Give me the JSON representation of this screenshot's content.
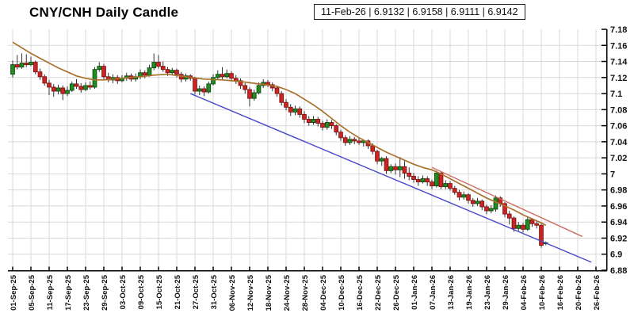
{
  "title": "CNY/CNH Daily Candle",
  "info_box": "11-Feb-26 | 6.9132 | 6.9158 | 6.9111 | 6.9142",
  "chart_data": {
    "type": "candlestick",
    "title": "CNY/CNH Daily Candle",
    "last_bar": {
      "date": "11-Feb-26",
      "open": 6.9132,
      "high": 6.9158,
      "low": 6.9111,
      "close": 6.9142
    },
    "ylim": [
      6.88,
      7.18
    ],
    "grid": true,
    "y_axis_side": "right",
    "y_ticks": [
      "7.18",
      "7.16",
      "7.14",
      "7.12",
      "7.1",
      "7.08",
      "7.06",
      "7.04",
      "7.02",
      "7",
      "6.98",
      "6.96",
      "6.94",
      "6.92",
      "6.9",
      "6.88"
    ],
    "x_label_step": 4,
    "x_extent": 128,
    "x_labels": [
      "01-Sep-25",
      "05-Sep-25",
      "11-Sep-25",
      "17-Sep-25",
      "23-Sep-25",
      "29-Sep-25",
      "03-Oct-25",
      "09-Oct-25",
      "15-Oct-25",
      "21-Oct-25",
      "27-Oct-25",
      "31-Oct-25",
      "06-Nov-25",
      "12-Nov-25",
      "18-Nov-25",
      "24-Nov-25",
      "28-Nov-25",
      "04-Dec-25",
      "10-Dec-25",
      "16-Dec-25",
      "22-Dec-25",
      "26-Dec-25",
      "01-Jan-26",
      "07-Jan-26",
      "13-Jan-26",
      "19-Jan-26",
      "23-Jan-26",
      "29-Jan-26",
      "04-Feb-26",
      "10-Feb-26",
      "16-Feb-26",
      "20-Feb-26",
      "26-Feb-26"
    ],
    "candles": [
      [
        "01-Sep-25",
        7.124,
        7.141,
        7.12,
        7.136
      ],
      [
        "02-Sep-25",
        7.136,
        7.148,
        7.13,
        7.133
      ],
      [
        "03-Sep-25",
        7.133,
        7.15,
        7.131,
        7.138
      ],
      [
        "04-Sep-25",
        7.138,
        7.149,
        7.133,
        7.136
      ],
      [
        "05-Sep-25",
        7.136,
        7.146,
        7.134,
        7.139
      ],
      [
        "08-Sep-25",
        7.139,
        7.141,
        7.124,
        7.127
      ],
      [
        "09-Sep-25",
        7.127,
        7.131,
        7.117,
        7.121
      ],
      [
        "10-Sep-25",
        7.121,
        7.124,
        7.11,
        7.113
      ],
      [
        "11-Sep-25",
        7.113,
        7.117,
        7.098,
        7.108
      ],
      [
        "12-Sep-25",
        7.108,
        7.112,
        7.096,
        7.103
      ],
      [
        "15-Sep-25",
        7.103,
        7.111,
        7.099,
        7.107
      ],
      [
        "16-Sep-25",
        7.107,
        7.11,
        7.092,
        7.1
      ],
      [
        "17-Sep-25",
        7.1,
        7.109,
        7.097,
        7.104
      ],
      [
        "18-Sep-25",
        7.104,
        7.115,
        7.102,
        7.112
      ],
      [
        "19-Sep-25",
        7.112,
        7.118,
        7.106,
        7.109
      ],
      [
        "22-Sep-25",
        7.109,
        7.113,
        7.101,
        7.105
      ],
      [
        "23-Sep-25",
        7.105,
        7.114,
        7.103,
        7.11
      ],
      [
        "24-Sep-25",
        7.11,
        7.115,
        7.105,
        7.108
      ],
      [
        "25-Sep-25",
        7.108,
        7.133,
        7.106,
        7.13
      ],
      [
        "26-Sep-25",
        7.13,
        7.139,
        7.127,
        7.134
      ],
      [
        "29-Sep-25",
        7.134,
        7.137,
        7.118,
        7.121
      ],
      [
        "30-Sep-25",
        7.121,
        7.126,
        7.114,
        7.117
      ],
      [
        "01-Oct-25",
        7.117,
        7.124,
        7.113,
        7.12
      ],
      [
        "02-Oct-25",
        7.12,
        7.123,
        7.112,
        7.116
      ],
      [
        "03-Oct-25",
        7.116,
        7.123,
        7.114,
        7.119
      ],
      [
        "06-Oct-25",
        7.119,
        7.126,
        7.116,
        7.122
      ],
      [
        "07-Oct-25",
        7.122,
        7.125,
        7.115,
        7.118
      ],
      [
        "08-Oct-25",
        7.118,
        7.125,
        7.115,
        7.121
      ],
      [
        "09-Oct-25",
        7.121,
        7.13,
        7.118,
        7.126
      ],
      [
        "10-Oct-25",
        7.126,
        7.129,
        7.119,
        7.123
      ],
      [
        "13-Oct-25",
        7.123,
        7.136,
        7.121,
        7.132
      ],
      [
        "14-Oct-25",
        7.132,
        7.15,
        7.129,
        7.139
      ],
      [
        "15-Oct-25",
        7.139,
        7.148,
        7.131,
        7.134
      ],
      [
        "16-Oct-25",
        7.134,
        7.14,
        7.127,
        7.13
      ],
      [
        "17-Oct-25",
        7.13,
        7.133,
        7.122,
        7.126
      ],
      [
        "20-Oct-25",
        7.126,
        7.132,
        7.123,
        7.129
      ],
      [
        "21-Oct-25",
        7.129,
        7.131,
        7.12,
        7.124
      ],
      [
        "22-Oct-25",
        7.124,
        7.127,
        7.114,
        7.118
      ],
      [
        "23-Oct-25",
        7.118,
        7.125,
        7.115,
        7.122
      ],
      [
        "24-Oct-25",
        7.122,
        7.124,
        7.116,
        7.119
      ],
      [
        "27-Oct-25",
        7.119,
        7.121,
        7.099,
        7.103
      ],
      [
        "28-Oct-25",
        7.103,
        7.11,
        7.098,
        7.106
      ],
      [
        "29-Oct-25",
        7.106,
        7.109,
        7.097,
        7.102
      ],
      [
        "30-Oct-25",
        7.102,
        7.115,
        7.1,
        7.112
      ],
      [
        "31-Oct-25",
        7.112,
        7.124,
        7.11,
        7.12
      ],
      [
        "03-Nov-25",
        7.12,
        7.129,
        7.117,
        7.124
      ],
      [
        "04-Nov-25",
        7.124,
        7.133,
        7.118,
        7.121
      ],
      [
        "05-Nov-25",
        7.121,
        7.13,
        7.119,
        7.125
      ],
      [
        "06-Nov-25",
        7.125,
        7.128,
        7.116,
        7.119
      ],
      [
        "07-Nov-25",
        7.119,
        7.123,
        7.112,
        7.116
      ],
      [
        "10-Nov-25",
        7.116,
        7.119,
        7.106,
        7.11
      ],
      [
        "11-Nov-25",
        7.11,
        7.113,
        7.1,
        7.105
      ],
      [
        "12-Nov-25",
        7.105,
        7.108,
        7.084,
        7.094
      ],
      [
        "13-Nov-25",
        7.094,
        7.105,
        7.091,
        7.101
      ],
      [
        "14-Nov-25",
        7.101,
        7.114,
        7.099,
        7.11
      ],
      [
        "17-Nov-25",
        7.11,
        7.118,
        7.107,
        7.114
      ],
      [
        "18-Nov-25",
        7.114,
        7.117,
        7.108,
        7.111
      ],
      [
        "19-Nov-25",
        7.111,
        7.114,
        7.103,
        7.107
      ],
      [
        "20-Nov-25",
        7.107,
        7.11,
        7.096,
        7.1
      ],
      [
        "21-Nov-25",
        7.1,
        7.103,
        7.085,
        7.089
      ],
      [
        "24-Nov-25",
        7.089,
        7.093,
        7.079,
        7.083
      ],
      [
        "25-Nov-25",
        7.083,
        7.087,
        7.072,
        7.077
      ],
      [
        "26-Nov-25",
        7.077,
        7.085,
        7.073,
        7.081
      ],
      [
        "27-Nov-25",
        7.081,
        7.084,
        7.07,
        7.074
      ],
      [
        "28-Nov-25",
        7.074,
        7.078,
        7.063,
        7.068
      ],
      [
        "01-Dec-25",
        7.068,
        7.072,
        7.06,
        7.064
      ],
      [
        "02-Dec-25",
        7.064,
        7.072,
        7.061,
        7.068
      ],
      [
        "03-Dec-25",
        7.068,
        7.071,
        7.059,
        7.063
      ],
      [
        "04-Dec-25",
        7.063,
        7.066,
        7.054,
        7.058
      ],
      [
        "05-Dec-25",
        7.058,
        7.068,
        7.055,
        7.064
      ],
      [
        "08-Dec-25",
        7.064,
        7.067,
        7.056,
        7.06
      ],
      [
        "09-Dec-25",
        7.06,
        7.062,
        7.048,
        7.052
      ],
      [
        "10-Dec-25",
        7.052,
        7.055,
        7.041,
        7.045
      ],
      [
        "11-Dec-25",
        7.045,
        7.048,
        7.035,
        7.039
      ],
      [
        "12-Dec-25",
        7.039,
        7.047,
        7.036,
        7.043
      ],
      [
        "15-Dec-25",
        7.043,
        7.046,
        7.037,
        7.041
      ],
      [
        "16-Dec-25",
        7.041,
        7.045,
        7.036,
        7.039
      ],
      [
        "17-Dec-25",
        7.039,
        7.043,
        7.034,
        7.041
      ],
      [
        "18-Dec-25",
        7.041,
        7.043,
        7.031,
        7.035
      ],
      [
        "19-Dec-25",
        7.035,
        7.038,
        7.024,
        7.028
      ],
      [
        "22-Dec-25",
        7.028,
        7.03,
        7.012,
        7.016
      ],
      [
        "23-Dec-25",
        7.016,
        7.021,
        7.01,
        7.019
      ],
      [
        "24-Dec-25",
        7.019,
        7.022,
        7.0,
        7.004
      ],
      [
        "25-Dec-25",
        7.004,
        7.012,
        7.001,
        7.009
      ],
      [
        "26-Dec-25",
        7.009,
        7.013,
        6.999,
        7.005
      ],
      [
        "29-Dec-25",
        7.005,
        7.021,
        6.996,
        7.009
      ],
      [
        "30-Dec-25",
        7.009,
        7.016,
        6.994,
        7.001
      ],
      [
        "31-Dec-25",
        7.001,
        7.008,
        6.992,
        6.997
      ],
      [
        "01-Jan-26",
        6.997,
        7.001,
        6.989,
        6.993
      ],
      [
        "02-Jan-26",
        6.993,
        6.997,
        6.985,
        6.99
      ],
      [
        "05-Jan-26",
        6.99,
        6.998,
        6.988,
        6.994
      ],
      [
        "06-Jan-26",
        6.994,
        6.997,
        6.985,
        6.99
      ],
      [
        "07-Jan-26",
        6.99,
        6.993,
        6.981,
        6.985
      ],
      [
        "08-Jan-26",
        6.985,
        7.004,
        6.983,
        7.001
      ],
      [
        "09-Jan-26",
        7.001,
        7.003,
        6.981,
        6.984
      ],
      [
        "12-Jan-26",
        6.984,
        6.992,
        6.981,
        6.988
      ],
      [
        "13-Jan-26",
        6.988,
        6.991,
        6.979,
        6.982
      ],
      [
        "14-Jan-26",
        6.982,
        6.985,
        6.974,
        6.977
      ],
      [
        "15-Jan-26",
        6.977,
        6.98,
        6.967,
        6.971
      ],
      [
        "16-Jan-26",
        6.971,
        6.978,
        6.968,
        6.974
      ],
      [
        "19-Jan-26",
        6.974,
        6.976,
        6.963,
        6.967
      ],
      [
        "20-Jan-26",
        6.967,
        6.97,
        6.959,
        6.963
      ],
      [
        "21-Jan-26",
        6.963,
        6.97,
        6.96,
        6.966
      ],
      [
        "22-Jan-26",
        6.966,
        6.968,
        6.955,
        6.959
      ],
      [
        "23-Jan-26",
        6.959,
        6.962,
        6.95,
        6.954
      ],
      [
        "26-Jan-26",
        6.954,
        6.961,
        6.951,
        6.957
      ],
      [
        "27-Jan-26",
        6.956,
        6.973,
        6.953,
        6.97
      ],
      [
        "28-Jan-26",
        6.97,
        6.972,
        6.959,
        6.963
      ],
      [
        "29-Jan-26",
        6.963,
        6.965,
        6.946,
        6.95
      ],
      [
        "30-Jan-26",
        6.95,
        6.954,
        6.937,
        6.945
      ],
      [
        "02-Feb-26",
        6.945,
        6.947,
        6.928,
        6.932
      ],
      [
        "03-Feb-26",
        6.932,
        6.94,
        6.929,
        6.936
      ],
      [
        "04-Feb-26",
        6.936,
        6.939,
        6.927,
        6.931
      ],
      [
        "05-Feb-26",
        6.931,
        6.946,
        6.929,
        6.943
      ],
      [
        "06-Feb-26",
        6.943,
        6.945,
        6.934,
        6.938
      ],
      [
        "09-Feb-26",
        6.938,
        6.941,
        6.932,
        6.936
      ],
      [
        "10-Feb-26",
        6.936,
        6.938,
        6.908,
        6.911
      ],
      [
        "11-Feb-26",
        6.9132,
        6.9158,
        6.9111,
        6.9142
      ]
    ],
    "ma_line": {
      "name": "moving-average",
      "color": "#a9712c",
      "points": [
        [
          0,
          7.164
        ],
        [
          2,
          7.157
        ],
        [
          4,
          7.15
        ],
        [
          6,
          7.144
        ],
        [
          8,
          7.138
        ],
        [
          10,
          7.132
        ],
        [
          12,
          7.127
        ],
        [
          14,
          7.122
        ],
        [
          16,
          7.119
        ],
        [
          18,
          7.117
        ],
        [
          20,
          7.117
        ],
        [
          24,
          7.119
        ],
        [
          28,
          7.121
        ],
        [
          31,
          7.123
        ],
        [
          34,
          7.124
        ],
        [
          38,
          7.121
        ],
        [
          42,
          7.118
        ],
        [
          46,
          7.117
        ],
        [
          50,
          7.115
        ],
        [
          54,
          7.112
        ],
        [
          58,
          7.109
        ],
        [
          60,
          7.105
        ],
        [
          62,
          7.1
        ],
        [
          64,
          7.093
        ],
        [
          66,
          7.086
        ],
        [
          68,
          7.078
        ],
        [
          70,
          7.069
        ],
        [
          72,
          7.06
        ],
        [
          74,
          7.052
        ],
        [
          76,
          7.045
        ],
        [
          78,
          7.039
        ],
        [
          80,
          7.033
        ],
        [
          82,
          7.027
        ],
        [
          84,
          7.022
        ],
        [
          86,
          7.017
        ],
        [
          88,
          7.012
        ],
        [
          90,
          7.008
        ],
        [
          92,
          7.005
        ],
        [
          94,
          7.0
        ],
        [
          96,
          6.994
        ],
        [
          98,
          6.988
        ],
        [
          100,
          6.982
        ],
        [
          102,
          6.976
        ],
        [
          104,
          6.97
        ],
        [
          106,
          6.965
        ],
        [
          108,
          6.96
        ],
        [
          110,
          6.955
        ],
        [
          112,
          6.949
        ],
        [
          114,
          6.944
        ],
        [
          116,
          6.939
        ],
        [
          117,
          6.936
        ]
      ]
    },
    "trendlines": [
      {
        "name": "support-trendline",
        "color": "#4747c9",
        "from": [
          39,
          7.1
        ],
        "to": [
          127,
          6.89
        ]
      },
      {
        "name": "resistance-trendline",
        "color": "#cd6d60",
        "from": [
          92,
          7.008
        ],
        "to": [
          125,
          6.922
        ]
      }
    ],
    "colors": {
      "up": "#228b22",
      "up_border": "#0e4a10",
      "down": "#cb2423",
      "down_border": "#7e1513",
      "wick": "#333333",
      "grid": "#d8d8d8",
      "axis": "#000000",
      "label": "#111111"
    }
  }
}
